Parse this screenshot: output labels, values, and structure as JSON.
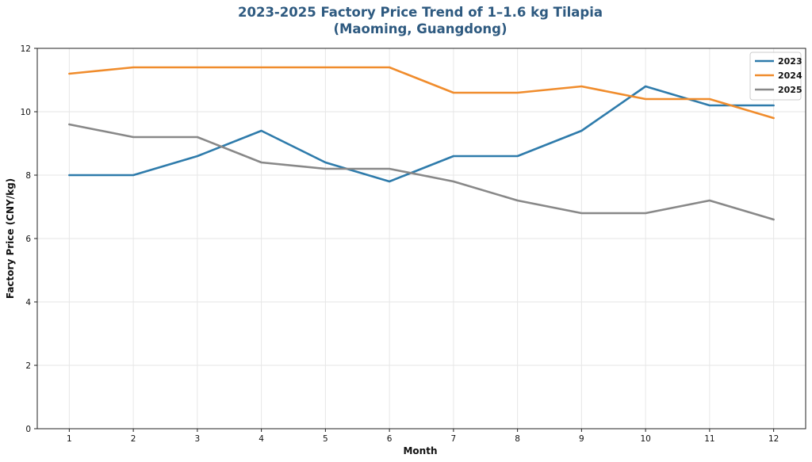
{
  "chart_data": {
    "type": "line",
    "title_line1": "2023-2025 Factory Price Trend of 1–1.6 kg Tilapia",
    "title_line2": "(Maoming, Guangdong)",
    "xlabel": "Month",
    "ylabel": "Factory Price (CNY/kg)",
    "x": [
      1,
      2,
      3,
      4,
      5,
      6,
      7,
      8,
      9,
      10,
      11,
      12
    ],
    "xlim": [
      0.5,
      12.5
    ],
    "ylim": [
      0,
      12
    ],
    "yticks": [
      0,
      2,
      4,
      6,
      8,
      10,
      12
    ],
    "grid": true,
    "legend_position": "top-right",
    "series": [
      {
        "name": "2023",
        "color": "#2e7bab",
        "values": [
          8.0,
          8.0,
          8.6,
          9.4,
          8.4,
          7.8,
          8.6,
          8.6,
          9.4,
          10.8,
          10.2,
          10.2
        ]
      },
      {
        "name": "2024",
        "color": "#f08c2c",
        "values": [
          11.2,
          11.4,
          11.4,
          11.4,
          11.4,
          11.4,
          10.6,
          10.6,
          10.8,
          10.4,
          10.4,
          9.8
        ]
      },
      {
        "name": "2025",
        "color": "#888888",
        "values": [
          9.6,
          9.2,
          9.2,
          8.4,
          8.2,
          8.2,
          7.8,
          7.2,
          6.8,
          6.8,
          7.2,
          6.6
        ]
      }
    ]
  }
}
